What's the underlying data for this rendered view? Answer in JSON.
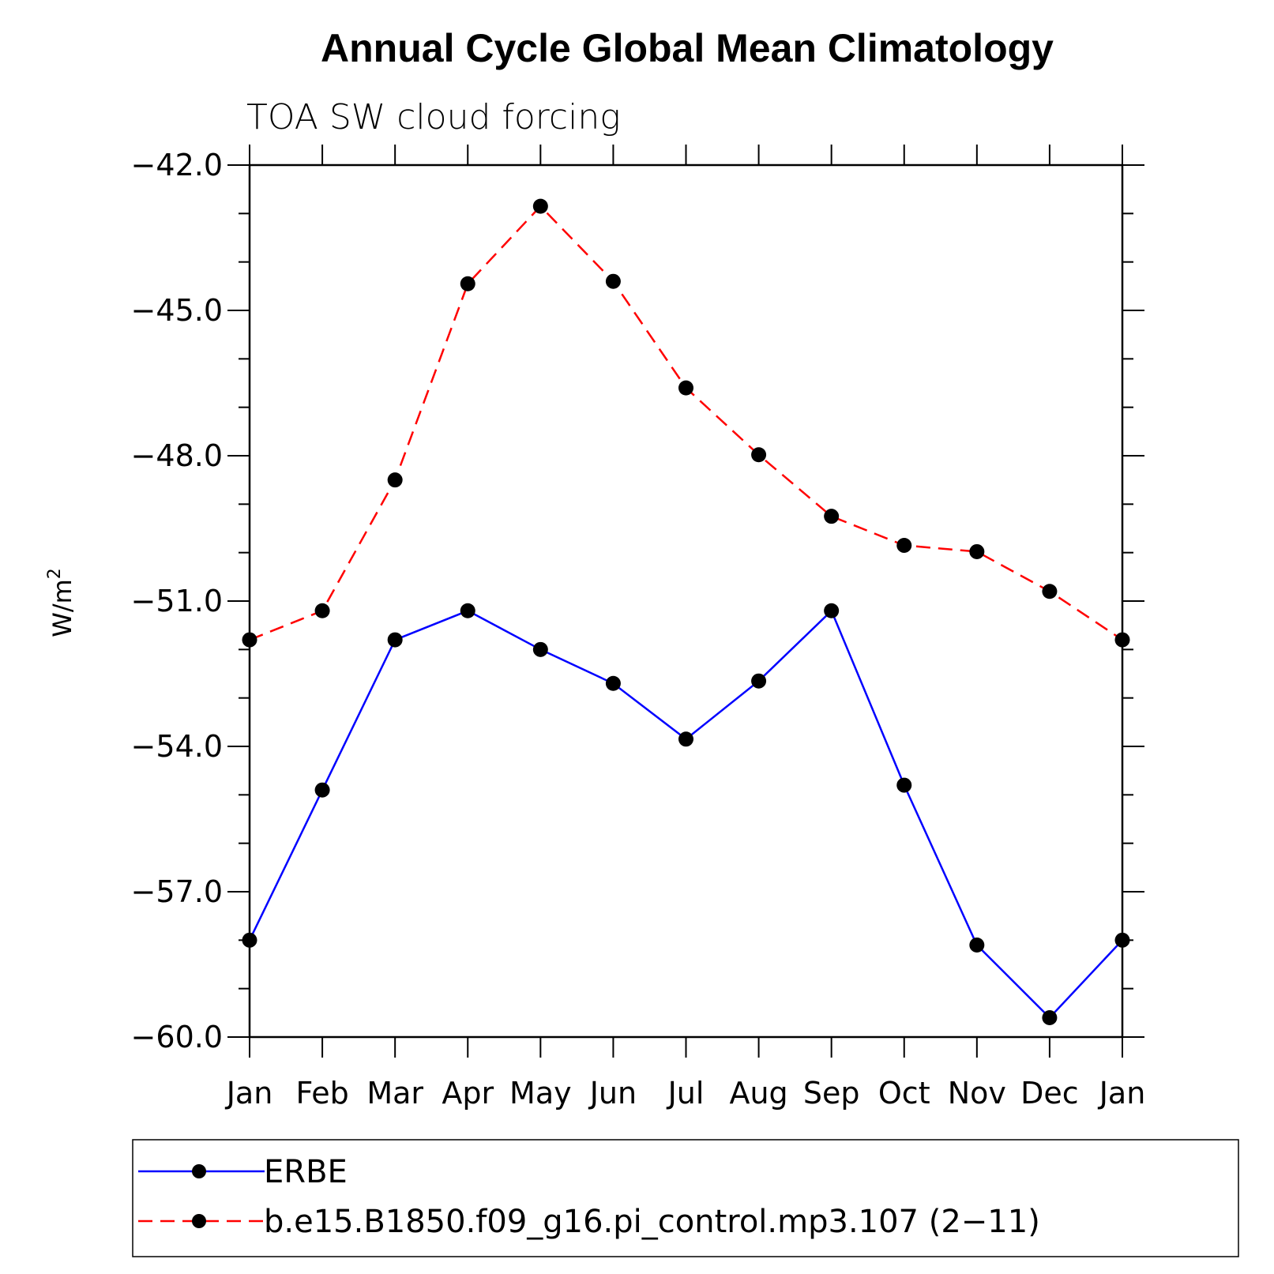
{
  "chart_data": {
    "type": "line",
    "title": "Annual Cycle Global Mean Climatology",
    "subtitle": "TOA SW cloud forcing",
    "ylabel": "W/m",
    "ylabel_superscript": "2",
    "xlabel": "",
    "categories": [
      "Jan",
      "Feb",
      "Mar",
      "Apr",
      "May",
      "Jun",
      "Jul",
      "Aug",
      "Sep",
      "Oct",
      "Nov",
      "Dec",
      "Jan"
    ],
    "ylim": [
      -60.0,
      -42.0
    ],
    "yticks": [
      -42.0,
      -45.0,
      -48.0,
      -51.0,
      -54.0,
      -57.0,
      -60.0
    ],
    "ytick_labels": [
      "−42.0",
      "−45.0",
      "−48.0",
      "−51.0",
      "−54.0",
      "−57.0",
      "−60.0"
    ],
    "series": [
      {
        "name": "ERBE",
        "color": "#0000ff",
        "dash": "solid",
        "values": [
          -58.0,
          -54.9,
          -51.8,
          -51.2,
          -52.0,
          -52.7,
          -53.85,
          -52.65,
          -51.2,
          -54.8,
          -58.1,
          -59.6,
          -58.0
        ]
      },
      {
        "name": "b.e15.B1850.f09_g16.pi_control.mp3.107 (2−11)",
        "color": "#ff0000",
        "dash": "dashed",
        "values": [
          -51.8,
          -51.2,
          -48.5,
          -44.45,
          -42.85,
          -44.4,
          -46.6,
          -47.98,
          -49.25,
          -49.85,
          -49.98,
          -50.8,
          -51.8
        ]
      }
    ],
    "legend_position": "bottom"
  }
}
